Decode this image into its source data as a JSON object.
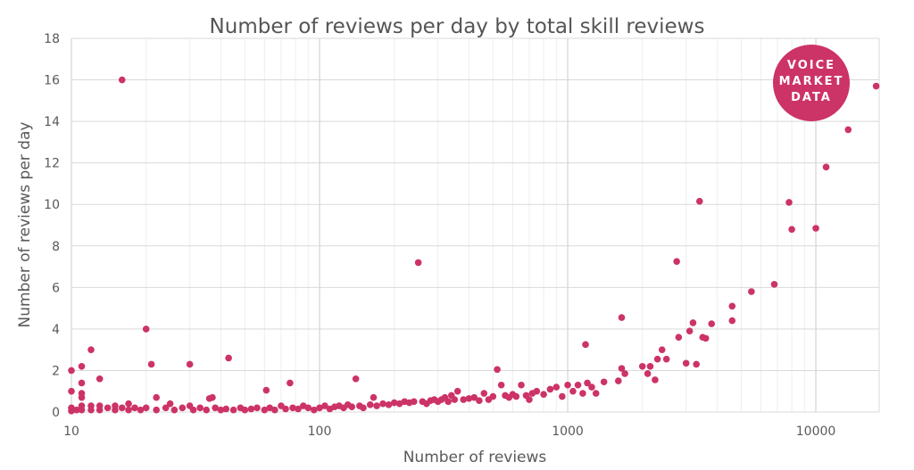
{
  "chart_data": {
    "type": "scatter",
    "title": "Number of reviews per day by total skill reviews",
    "xlabel": "Number of reviews",
    "ylabel": "Number of reviews per day",
    "xscale": "log",
    "xlim": [
      10,
      18000
    ],
    "ylim": [
      0,
      18
    ],
    "xticks": [
      10,
      100,
      1000,
      10000
    ],
    "xtick_labels": [
      "10",
      "100",
      "1000",
      "10000"
    ],
    "yticks": [
      0,
      2,
      4,
      6,
      8,
      10,
      12,
      14,
      16,
      18
    ],
    "ytick_labels": [
      "0",
      "2",
      "4",
      "6",
      "8",
      "10",
      "12",
      "14",
      "16",
      "18"
    ],
    "grid": true,
    "point_color": "#cc3366",
    "logo": {
      "lines": [
        "VOICE",
        "MARKET",
        "DATA"
      ],
      "color": "#cc3366"
    },
    "points": [
      [
        10,
        2.0
      ],
      [
        10,
        1.0
      ],
      [
        10,
        0.2
      ],
      [
        10,
        0.05
      ],
      [
        10.5,
        0.1
      ],
      [
        11,
        2.2
      ],
      [
        11,
        1.4
      ],
      [
        11,
        0.9
      ],
      [
        11,
        0.7
      ],
      [
        11,
        0.3
      ],
      [
        11,
        0.1
      ],
      [
        12,
        3.0
      ],
      [
        12,
        0.3
      ],
      [
        12,
        0.1
      ],
      [
        13,
        1.6
      ],
      [
        13,
        0.3
      ],
      [
        13,
        0.1
      ],
      [
        14,
        0.2
      ],
      [
        15,
        0.3
      ],
      [
        15,
        0.1
      ],
      [
        16,
        16.0
      ],
      [
        16,
        0.2
      ],
      [
        17,
        0.4
      ],
      [
        17,
        0.1
      ],
      [
        18,
        0.2
      ],
      [
        19,
        0.1
      ],
      [
        20,
        4.0
      ],
      [
        20,
        0.2
      ],
      [
        21,
        2.3
      ],
      [
        22,
        0.7
      ],
      [
        22,
        0.1
      ],
      [
        24,
        0.2
      ],
      [
        25,
        0.4
      ],
      [
        26,
        0.1
      ],
      [
        28,
        0.2
      ],
      [
        30,
        2.3
      ],
      [
        30,
        0.3
      ],
      [
        31,
        0.1
      ],
      [
        33,
        0.2
      ],
      [
        35,
        0.1
      ],
      [
        36,
        0.65
      ],
      [
        37,
        0.7
      ],
      [
        38,
        0.2
      ],
      [
        40,
        0.1
      ],
      [
        42,
        0.15
      ],
      [
        43,
        2.6
      ],
      [
        45,
        0.1
      ],
      [
        48,
        0.2
      ],
      [
        50,
        0.1
      ],
      [
        53,
        0.15
      ],
      [
        56,
        0.2
      ],
      [
        60,
        0.1
      ],
      [
        61,
        1.05
      ],
      [
        63,
        0.2
      ],
      [
        66,
        0.1
      ],
      [
        70,
        0.3
      ],
      [
        73,
        0.15
      ],
      [
        76,
        1.4
      ],
      [
        78,
        0.2
      ],
      [
        82,
        0.15
      ],
      [
        86,
        0.3
      ],
      [
        90,
        0.2
      ],
      [
        95,
        0.1
      ],
      [
        100,
        0.2
      ],
      [
        105,
        0.3
      ],
      [
        110,
        0.15
      ],
      [
        115,
        0.25
      ],
      [
        120,
        0.3
      ],
      [
        125,
        0.2
      ],
      [
        130,
        0.35
      ],
      [
        135,
        0.25
      ],
      [
        140,
        1.6
      ],
      [
        145,
        0.3
      ],
      [
        150,
        0.2
      ],
      [
        160,
        0.35
      ],
      [
        165,
        0.7
      ],
      [
        170,
        0.3
      ],
      [
        180,
        0.4
      ],
      [
        190,
        0.35
      ],
      [
        200,
        0.45
      ],
      [
        210,
        0.4
      ],
      [
        220,
        0.5
      ],
      [
        230,
        0.45
      ],
      [
        240,
        0.5
      ],
      [
        250,
        7.2
      ],
      [
        260,
        0.5
      ],
      [
        270,
        0.4
      ],
      [
        280,
        0.55
      ],
      [
        290,
        0.6
      ],
      [
        300,
        0.5
      ],
      [
        310,
        0.6
      ],
      [
        320,
        0.7
      ],
      [
        330,
        0.5
      ],
      [
        340,
        0.8
      ],
      [
        350,
        0.6
      ],
      [
        360,
        1.0
      ],
      [
        380,
        0.6
      ],
      [
        400,
        0.65
      ],
      [
        420,
        0.7
      ],
      [
        440,
        0.55
      ],
      [
        460,
        0.9
      ],
      [
        480,
        0.6
      ],
      [
        500,
        0.75
      ],
      [
        520,
        2.05
      ],
      [
        540,
        1.3
      ],
      [
        560,
        0.8
      ],
      [
        580,
        0.7
      ],
      [
        600,
        0.85
      ],
      [
        620,
        0.75
      ],
      [
        650,
        1.3
      ],
      [
        680,
        0.8
      ],
      [
        700,
        0.6
      ],
      [
        720,
        0.9
      ],
      [
        750,
        1.0
      ],
      [
        800,
        0.85
      ],
      [
        850,
        1.1
      ],
      [
        900,
        1.2
      ],
      [
        950,
        0.75
      ],
      [
        1000,
        1.3
      ],
      [
        1050,
        1.0
      ],
      [
        1100,
        1.3
      ],
      [
        1150,
        0.9
      ],
      [
        1180,
        3.25
      ],
      [
        1200,
        1.4
      ],
      [
        1250,
        1.2
      ],
      [
        1300,
        0.9
      ],
      [
        1400,
        1.45
      ],
      [
        1600,
        1.5
      ],
      [
        1650,
        4.55
      ],
      [
        1650,
        2.1
      ],
      [
        1700,
        1.85
      ],
      [
        2000,
        2.2
      ],
      [
        2100,
        1.85
      ],
      [
        2150,
        2.2
      ],
      [
        2250,
        1.55
      ],
      [
        2300,
        2.55
      ],
      [
        2400,
        3.0
      ],
      [
        2500,
        2.55
      ],
      [
        2750,
        7.25
      ],
      [
        2800,
        3.6
      ],
      [
        3000,
        2.35
      ],
      [
        3100,
        3.9
      ],
      [
        3200,
        4.3
      ],
      [
        3300,
        2.3
      ],
      [
        3400,
        10.15
      ],
      [
        3500,
        3.6
      ],
      [
        3600,
        3.55
      ],
      [
        3800,
        4.25
      ],
      [
        4600,
        5.1
      ],
      [
        4600,
        4.4
      ],
      [
        5500,
        5.8
      ],
      [
        6800,
        6.15
      ],
      [
        7800,
        10.1
      ],
      [
        8000,
        8.8
      ],
      [
        10000,
        8.85
      ],
      [
        11000,
        11.8
      ],
      [
        13500,
        13.6
      ],
      [
        17500,
        15.7
      ]
    ]
  }
}
